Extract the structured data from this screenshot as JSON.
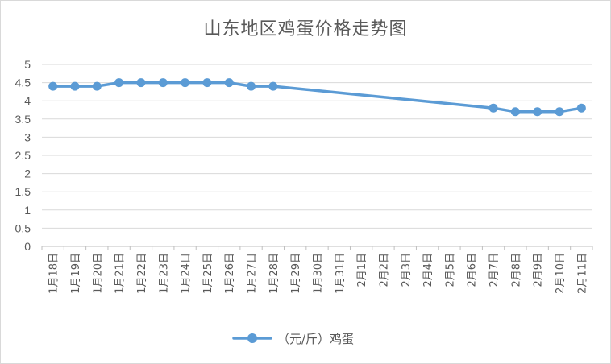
{
  "chart_data": {
    "type": "line",
    "title": "山东地区鸡蛋价格走势图",
    "categories": [
      "1月18日",
      "1月19日",
      "1月20日",
      "1月21日",
      "1月22日",
      "1月23日",
      "1月24日",
      "1月25日",
      "1月26日",
      "1月27日",
      "1月28日",
      "1月29日",
      "1月30日",
      "1月31日",
      "2月1日",
      "2月2日",
      "2月3日",
      "2月4日",
      "2月5日",
      "2月6日",
      "2月7日",
      "2月8日",
      "2月9日",
      "2月10日",
      "2月11日"
    ],
    "series": [
      {
        "name": "（元/斤）鸡蛋",
        "color": "#5b9bd5",
        "values": [
          4.4,
          4.4,
          4.4,
          4.5,
          4.5,
          4.5,
          4.5,
          4.5,
          4.5,
          4.4,
          4.4,
          null,
          null,
          null,
          null,
          null,
          null,
          null,
          null,
          null,
          3.8,
          3.7,
          3.7,
          3.7,
          3.8
        ]
      }
    ],
    "y_ticks": [
      "0",
      "0.5",
      "1",
      "1.5",
      "2",
      "2.5",
      "3",
      "3.5",
      "4",
      "4.5",
      "5"
    ],
    "ylim": [
      0,
      5
    ],
    "grid": true,
    "legend_position": "bottom"
  }
}
